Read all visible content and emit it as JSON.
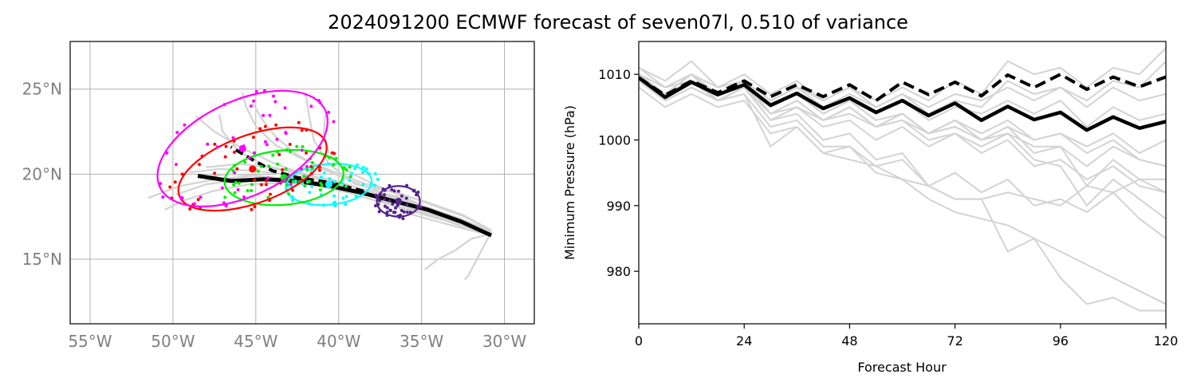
{
  "title": "2024091200 ECMWF forecast of seven07l, 0.510 of variance",
  "chart_data": [
    {
      "type": "map-track",
      "lon_range": [
        -56.2,
        -28.2
      ],
      "lat_range": [
        11.2,
        27.8
      ],
      "lon_ticks": [
        {
          "v": -55,
          "label": "55°W"
        },
        {
          "v": -50,
          "label": "50°W"
        },
        {
          "v": -45,
          "label": "45°W"
        },
        {
          "v": -40,
          "label": "40°W"
        },
        {
          "v": -35,
          "label": "35°W"
        },
        {
          "v": -30,
          "label": "30°W"
        }
      ],
      "lat_ticks": [
        {
          "v": 15,
          "label": "15°N"
        },
        {
          "v": 20,
          "label": "20°N"
        },
        {
          "v": 25,
          "label": "25°N"
        }
      ],
      "grid": true,
      "ensemble_tracks": [
        [
          [
            -30.8,
            16.6
          ],
          [
            -32.5,
            17.3
          ],
          [
            -34.5,
            18.0
          ],
          [
            -36.5,
            18.7
          ],
          [
            -38.5,
            19.1
          ],
          [
            -40.5,
            19.7
          ],
          [
            -42.5,
            20.0
          ],
          [
            -44.5,
            20.5
          ],
          [
            -46.0,
            21.3
          ],
          [
            -47.0,
            22.5
          ],
          [
            -47.2,
            23.5
          ]
        ],
        [
          [
            -30.8,
            16.5
          ],
          [
            -32.6,
            17.0
          ],
          [
            -34.6,
            17.8
          ],
          [
            -36.6,
            18.6
          ],
          [
            -38.6,
            19.0
          ],
          [
            -40.8,
            19.5
          ],
          [
            -43.0,
            19.7
          ],
          [
            -45.2,
            19.9
          ],
          [
            -47.4,
            19.7
          ],
          [
            -49.6,
            19.3
          ],
          [
            -51.5,
            18.6
          ]
        ],
        [
          [
            -30.8,
            16.7
          ],
          [
            -32.4,
            17.5
          ],
          [
            -34.4,
            18.2
          ],
          [
            -36.4,
            18.9
          ],
          [
            -38.3,
            19.4
          ],
          [
            -40.2,
            20.1
          ],
          [
            -42.0,
            20.8
          ],
          [
            -43.8,
            21.7
          ],
          [
            -45.0,
            22.8
          ],
          [
            -45.6,
            24.0
          ],
          [
            -45.8,
            24.8
          ]
        ],
        [
          [
            -30.8,
            16.4
          ],
          [
            -32.5,
            16.8
          ],
          [
            -34.0,
            17.2
          ],
          [
            -35.5,
            17.6
          ],
          [
            -37.0,
            18.3
          ],
          [
            -38.8,
            19.0
          ],
          [
            -40.5,
            19.6
          ],
          [
            -42.3,
            20.1
          ],
          [
            -44.0,
            20.4
          ],
          [
            -46.0,
            20.6
          ],
          [
            -48.0,
            20.4
          ]
        ],
        [
          [
            -30.8,
            16.6
          ],
          [
            -32.2,
            14.0
          ],
          [
            -32.4,
            13.8
          ]
        ],
        [
          [
            -30.8,
            16.5
          ],
          [
            -32.0,
            16.2
          ],
          [
            -33.0,
            15.5
          ],
          [
            -34.0,
            15.0
          ],
          [
            -34.8,
            14.4
          ]
        ],
        [
          [
            -30.8,
            16.7
          ],
          [
            -32.5,
            17.6
          ],
          [
            -34.8,
            18.4
          ],
          [
            -37.0,
            19.0
          ],
          [
            -39.0,
            19.4
          ],
          [
            -40.6,
            20.6
          ],
          [
            -41.5,
            22.0
          ],
          [
            -41.8,
            23.5
          ],
          [
            -42.0,
            24.8
          ]
        ],
        [
          [
            -30.8,
            16.6
          ],
          [
            -32.6,
            17.2
          ],
          [
            -34.7,
            17.9
          ],
          [
            -36.8,
            18.5
          ],
          [
            -38.9,
            19.0
          ],
          [
            -41.0,
            19.3
          ],
          [
            -43.2,
            19.5
          ],
          [
            -45.4,
            19.4
          ],
          [
            -47.6,
            19.0
          ],
          [
            -49.5,
            18.4
          ],
          [
            -50.5,
            17.9
          ]
        ],
        [
          [
            -30.8,
            16.6
          ],
          [
            -32.7,
            17.4
          ],
          [
            -34.9,
            18.1
          ],
          [
            -37.1,
            18.8
          ],
          [
            -39.2,
            19.6
          ],
          [
            -41.0,
            20.3
          ],
          [
            -42.6,
            21.2
          ],
          [
            -43.8,
            22.2
          ],
          [
            -44.6,
            23.2
          ],
          [
            -45.2,
            24.2
          ]
        ],
        [
          [
            -30.8,
            16.5
          ],
          [
            -32.8,
            17.0
          ],
          [
            -34.8,
            17.7
          ],
          [
            -37.0,
            18.4
          ],
          [
            -39.2,
            19.0
          ],
          [
            -41.5,
            19.8
          ],
          [
            -43.8,
            20.6
          ],
          [
            -45.8,
            21.5
          ],
          [
            -47.5,
            22.5
          ],
          [
            -48.6,
            23.4
          ]
        ],
        [
          [
            -30.8,
            16.6
          ],
          [
            -32.5,
            17.1
          ],
          [
            -34.4,
            17.8
          ],
          [
            -36.2,
            18.4
          ],
          [
            -38.0,
            18.9
          ],
          [
            -39.8,
            19.3
          ],
          [
            -41.6,
            19.6
          ],
          [
            -43.4,
            20.0
          ],
          [
            -45.2,
            20.2
          ],
          [
            -47.2,
            20.3
          ],
          [
            -49.0,
            20.1
          ]
        ],
        [
          [
            -30.8,
            16.7
          ],
          [
            -32.6,
            17.3
          ],
          [
            -34.6,
            18.0
          ],
          [
            -36.4,
            18.8
          ],
          [
            -38.1,
            19.5
          ],
          [
            -39.7,
            20.3
          ],
          [
            -40.6,
            21.3
          ],
          [
            -40.9,
            22.4
          ],
          [
            -40.8,
            23.5
          ]
        ],
        [
          [
            -30.8,
            16.5
          ],
          [
            -33.0,
            17.2
          ],
          [
            -35.2,
            17.9
          ],
          [
            -37.3,
            18.6
          ],
          [
            -39.3,
            19.1
          ],
          [
            -41.4,
            19.4
          ],
          [
            -43.6,
            19.6
          ],
          [
            -45.8,
            19.7
          ],
          [
            -48.0,
            19.4
          ],
          [
            -49.8,
            18.8
          ]
        ],
        [
          [
            -30.8,
            16.6
          ],
          [
            -32.4,
            17.0
          ],
          [
            -34.1,
            17.4
          ],
          [
            -35.8,
            17.9
          ],
          [
            -37.6,
            18.4
          ],
          [
            -39.4,
            18.9
          ],
          [
            -41.2,
            19.3
          ],
          [
            -43.0,
            19.7
          ],
          [
            -44.8,
            19.9
          ],
          [
            -46.6,
            20.0
          ],
          [
            -48.4,
            19.8
          ]
        ]
      ],
      "ensemble_mean_track": [
        [
          -30.8,
          16.4
        ],
        [
          -32.6,
          17.2
        ],
        [
          -34.6,
          17.9
        ],
        [
          -36.6,
          18.4
        ],
        [
          -38.6,
          18.9
        ],
        [
          -40.5,
          19.3
        ],
        [
          -42.5,
          19.6
        ],
        [
          -44.5,
          19.7
        ],
        [
          -46.5,
          19.6
        ],
        [
          -48.5,
          19.9
        ]
      ],
      "deterministic_track": [
        [
          -38.5,
          19.0
        ],
        [
          -40.5,
          19.5
        ],
        [
          -42.5,
          19.8
        ],
        [
          -44.0,
          20.2
        ],
        [
          -45.3,
          20.9
        ],
        [
          -46.5,
          21.6
        ]
      ],
      "clusters": [
        {
          "color": "#562388",
          "center": [
            -36.4,
            18.4
          ],
          "rx": 1.3,
          "ry": 0.9,
          "angle": 0
        },
        {
          "color": "#00ffff",
          "center": [
            -40.6,
            19.4
          ],
          "rx": 2.6,
          "ry": 1.2,
          "angle": -5
        },
        {
          "color": "#00ee00",
          "center": [
            -43.3,
            19.8
          ],
          "rx": 3.6,
          "ry": 1.6,
          "angle": -5
        },
        {
          "color": "#ff0000",
          "center": [
            -45.2,
            20.3
          ],
          "rx": 4.7,
          "ry": 2.0,
          "angle": -20
        },
        {
          "color": "#ff00ff",
          "center": [
            -45.8,
            21.5
          ],
          "rx": 5.5,
          "ry": 2.8,
          "angle": -25
        }
      ]
    },
    {
      "type": "line",
      "xlabel": "Forecast Hour",
      "ylabel": "Minimum Pressure (hPa)",
      "xlim": [
        0,
        120
      ],
      "ylim": [
        972,
        1015
      ],
      "x_ticks": [
        0,
        24,
        48,
        72,
        96,
        120
      ],
      "y_ticks": [
        980,
        990,
        1000,
        1010
      ],
      "x": [
        0,
        6,
        12,
        18,
        24,
        30,
        36,
        42,
        48,
        54,
        60,
        66,
        72,
        78,
        84,
        90,
        96,
        102,
        108,
        114,
        120
      ],
      "ensemble_members": [
        [
          1011,
          1009,
          1012,
          1008,
          1010,
          1007,
          1009,
          1006,
          1008,
          1006,
          1008,
          1006,
          1009,
          1007,
          1012,
          1010,
          1011,
          1008,
          1011,
          1010,
          1014
        ],
        [
          1010,
          1008,
          1010,
          1007,
          1009,
          1006,
          1008,
          1005,
          1007,
          1005,
          1007,
          1004,
          1006,
          1005,
          1009,
          1007,
          1008,
          1006,
          1009,
          1008,
          1012
        ],
        [
          1009,
          1007,
          1009,
          1006,
          1008,
          1004,
          1006,
          1003,
          1005,
          1002,
          1003,
          1000,
          1001,
          999,
          1001,
          997,
          996,
          990,
          994,
          991,
          988
        ],
        [
          1010,
          1007,
          1009,
          1007,
          1009,
          1005,
          1007,
          1004,
          1006,
          1003,
          1004,
          1001,
          1002,
          1000,
          1002,
          998,
          999,
          993,
          997,
          994,
          992
        ],
        [
          1009,
          1006,
          1008,
          1006,
          1008,
          1003,
          1004,
          1000,
          1001,
          997,
          998,
          993,
          991,
          991,
          983,
          985,
          979,
          975,
          976,
          974,
          974
        ],
        [
          1010,
          1007,
          1009,
          1006,
          1007,
          1002,
          1003,
          999,
          999,
          995,
          994,
          991,
          989,
          988,
          987,
          985,
          983,
          981,
          979,
          977,
          975
        ],
        [
          1009,
          1006,
          1008,
          1006,
          1007,
          999,
          1002,
          998,
          999,
          996,
          997,
          993,
          995,
          992,
          994,
          990,
          991,
          989,
          992,
          988,
          985
        ],
        [
          1010,
          1008,
          1009,
          1007,
          1009,
          1004,
          1006,
          1003,
          1005,
          1002,
          1004,
          1001,
          1003,
          1001,
          1003,
          1000,
          1001,
          998,
          1000,
          997,
          996
        ],
        [
          1009,
          1007,
          1010,
          1006,
          1008,
          1005,
          1007,
          1004,
          1006,
          1004,
          1006,
          1003,
          1005,
          1004,
          1006,
          1004,
          1006,
          1002,
          1005,
          1003,
          1004
        ],
        [
          1011,
          1008,
          1010,
          1008,
          1009,
          1006,
          1008,
          1006,
          1008,
          1005,
          1007,
          1005,
          1007,
          1006,
          1008,
          1006,
          1008,
          1005,
          1008,
          1006,
          1007
        ],
        [
          1008,
          1005,
          1007,
          1005,
          1006,
          1001,
          1002,
          998,
          997,
          996,
          994,
          993,
          991,
          991,
          992,
          991,
          990,
          993,
          992,
          994,
          994
        ],
        [
          1009,
          1006,
          1008,
          1006,
          1008,
          1003,
          1005,
          1002,
          1003,
          1000,
          1002,
          999,
          1001,
          998,
          1000,
          996,
          997,
          994,
          996,
          993,
          992
        ],
        [
          1010,
          1007,
          1009,
          1007,
          1008,
          1004,
          1006,
          1003,
          1005,
          1002,
          1004,
          1001,
          1003,
          1000,
          1002,
          1000,
          1001,
          999,
          1001,
          998,
          1000
        ],
        [
          1009,
          1006,
          1008,
          1006,
          1008,
          1004,
          1005,
          1003,
          1004,
          1002,
          1003,
          1001,
          1002,
          1000,
          1001,
          999,
          999,
          996,
          999,
          997,
          996
        ]
      ],
      "dashed_series": [
        1009.5,
        1006.8,
        1009.0,
        1007.2,
        1009.0,
        1006.6,
        1008.4,
        1006.6,
        1008.4,
        1006.0,
        1008.8,
        1006.9,
        1008.8,
        1006.7,
        1009.9,
        1008.0,
        1010.0,
        1007.7,
        1009.6,
        1008.1,
        1009.6
      ],
      "mean_series": [
        1009.5,
        1006.5,
        1008.8,
        1006.9,
        1008.4,
        1005.3,
        1007.1,
        1004.8,
        1006.4,
        1004.2,
        1006.0,
        1003.7,
        1005.6,
        1003.0,
        1005.1,
        1003.1,
        1004.2,
        1001.5,
        1003.5,
        1001.8,
        1002.8
      ]
    }
  ]
}
